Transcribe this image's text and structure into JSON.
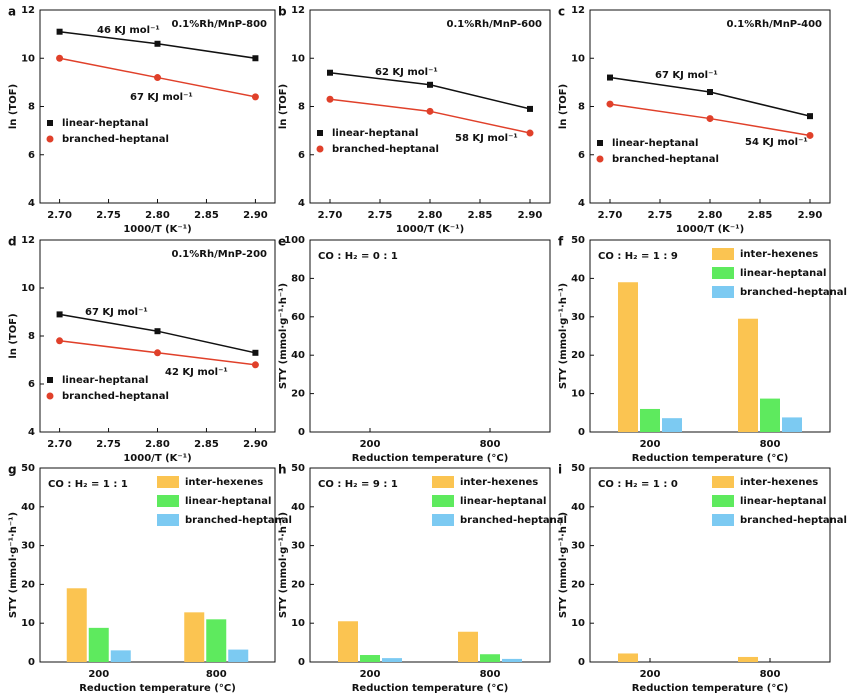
{
  "chart_data": [
    {
      "type": "line",
      "panel_label": "a",
      "title": "0.1%Rh/MnP-800",
      "xlabel": "1000/T (K⁻¹)",
      "ylabel": "ln (TOF)",
      "x": [
        2.7,
        2.8,
        2.9
      ],
      "xlim": [
        2.68,
        2.92
      ],
      "xticks": [
        {
          "value": 2.7,
          "label": "2.70"
        },
        {
          "value": 2.75,
          "label": "2.75"
        },
        {
          "value": 2.8,
          "label": "2.80"
        },
        {
          "value": 2.85,
          "label": "2.85"
        },
        {
          "value": 2.9,
          "label": "2.90"
        }
      ],
      "ylim": [
        4,
        12
      ],
      "yticks": [
        4,
        6,
        8,
        10,
        12
      ],
      "series": [
        {
          "name": "linear-heptanal",
          "color": "#111111",
          "marker": "square",
          "values": [
            11.1,
            10.6,
            10.0
          ]
        },
        {
          "name": "branched-heptanal",
          "color": "#e0402a",
          "marker": "circle",
          "values": [
            10.0,
            9.2,
            8.4
          ]
        }
      ],
      "annotations": [
        "46 KJ mol⁻¹",
        "67 KJ mol⁻¹"
      ]
    },
    {
      "type": "line",
      "panel_label": "b",
      "title": "0.1%Rh/MnP-600",
      "xlabel": "1000/T (K⁻¹)",
      "ylabel": "ln (TOF)",
      "x": [
        2.7,
        2.8,
        2.9
      ],
      "xlim": [
        2.68,
        2.92
      ],
      "xticks": [
        {
          "value": 2.7,
          "label": "2.70"
        },
        {
          "value": 2.75,
          "label": "2.75"
        },
        {
          "value": 2.8,
          "label": "2.80"
        },
        {
          "value": 2.85,
          "label": "2.85"
        },
        {
          "value": 2.9,
          "label": "2.90"
        }
      ],
      "ylim": [
        4,
        12
      ],
      "yticks": [
        4,
        6,
        8,
        10,
        12
      ],
      "series": [
        {
          "name": "linear-heptanal",
          "color": "#111111",
          "marker": "square",
          "values": [
            9.4,
            8.9,
            7.9
          ]
        },
        {
          "name": "branched-heptanal",
          "color": "#e0402a",
          "marker": "circle",
          "values": [
            8.3,
            7.8,
            6.9
          ]
        }
      ],
      "annotations": [
        "62 KJ mol⁻¹",
        "58  KJ mol⁻¹"
      ]
    },
    {
      "type": "line",
      "panel_label": "c",
      "title": "0.1%Rh/MnP-400",
      "xlabel": "1000/T (K⁻¹)",
      "ylabel": "ln (TOF)",
      "x": [
        2.7,
        2.8,
        2.9
      ],
      "xlim": [
        2.68,
        2.92
      ],
      "xticks": [
        {
          "value": 2.7,
          "label": "2.70"
        },
        {
          "value": 2.75,
          "label": "2.75"
        },
        {
          "value": 2.8,
          "label": "2.80"
        },
        {
          "value": 2.85,
          "label": "2.85"
        },
        {
          "value": 2.9,
          "label": "2.90"
        }
      ],
      "ylim": [
        4,
        12
      ],
      "yticks": [
        4,
        6,
        8,
        10,
        12
      ],
      "series": [
        {
          "name": "linear-heptanal",
          "color": "#111111",
          "marker": "square",
          "values": [
            9.2,
            8.6,
            7.6
          ]
        },
        {
          "name": "branched-heptanal",
          "color": "#e0402a",
          "marker": "circle",
          "values": [
            8.1,
            7.5,
            6.8
          ]
        }
      ],
      "annotations": [
        "67 KJ mol⁻¹",
        "54 KJ mol⁻¹"
      ]
    },
    {
      "type": "line",
      "panel_label": "d",
      "title": "0.1%Rh/MnP-200",
      "xlabel": "1000/T (K⁻¹)",
      "ylabel": "ln (TOF)",
      "x": [
        2.7,
        2.8,
        2.9
      ],
      "xlim": [
        2.68,
        2.92
      ],
      "xticks": [
        {
          "value": 2.7,
          "label": "2.70"
        },
        {
          "value": 2.75,
          "label": "2.75"
        },
        {
          "value": 2.8,
          "label": "2.80"
        },
        {
          "value": 2.85,
          "label": "2.85"
        },
        {
          "value": 2.9,
          "label": "2.90"
        }
      ],
      "ylim": [
        4,
        12
      ],
      "yticks": [
        4,
        6,
        8,
        10,
        12
      ],
      "series": [
        {
          "name": "linear-heptanal",
          "color": "#111111",
          "marker": "square",
          "values": [
            8.9,
            8.2,
            7.3
          ]
        },
        {
          "name": "branched-heptanal",
          "color": "#e0402a",
          "marker": "circle",
          "values": [
            7.8,
            7.3,
            6.8
          ]
        }
      ],
      "annotations": [
        "67 KJ mol⁻¹",
        "42 KJ mol⁻¹"
      ]
    },
    {
      "type": "bar",
      "panel_label": "e",
      "title": "CO : H₂ = 0 : 1",
      "xlabel": "Reduction temperature (°C)",
      "ylabel": "STY (mmol·g⁻¹·h⁻¹)",
      "categories": [
        "200",
        "800"
      ],
      "ylim": [
        0,
        100
      ],
      "yticks": [
        0,
        20,
        40,
        60,
        80,
        100
      ],
      "values": [
        0,
        0
      ],
      "color": "#a05ad0"
    },
    {
      "type": "bar",
      "panel_label": "f",
      "title": "CO : H₂ = 1 : 9",
      "xlabel": "Reduction temperature (°C)",
      "ylabel": "STY (mmol·g⁻¹·h⁻¹)",
      "categories": [
        "200",
        "800"
      ],
      "ylim": [
        0,
        50
      ],
      "yticks": [
        0,
        10,
        20,
        30,
        40,
        50
      ],
      "series": [
        {
          "name": "inter-hexenes",
          "color": "#fbc451",
          "values": [
            39,
            29.5
          ]
        },
        {
          "name": "linear-heptanal",
          "color": "#5eea5e",
          "values": [
            6,
            8.7
          ]
        },
        {
          "name": "branched-heptanal",
          "color": "#7ccaf2",
          "values": [
            3.6,
            3.8
          ]
        }
      ]
    },
    {
      "type": "bar",
      "panel_label": "g",
      "title": "CO : H₂ = 1 : 1",
      "xlabel": "Reduction temperature (°C)",
      "ylabel": "STY (mmol·g⁻¹·h⁻¹)",
      "categories": [
        "200",
        "800"
      ],
      "ylim": [
        0,
        50
      ],
      "yticks": [
        0,
        10,
        20,
        30,
        40,
        50
      ],
      "series": [
        {
          "name": "inter-hexenes",
          "color": "#fbc451",
          "values": [
            19,
            12.8
          ]
        },
        {
          "name": "linear-heptanal",
          "color": "#5eea5e",
          "values": [
            8.8,
            11
          ]
        },
        {
          "name": "branched-heptanal",
          "color": "#7ccaf2",
          "values": [
            3,
            3.2
          ]
        }
      ]
    },
    {
      "type": "bar",
      "panel_label": "h",
      "title": "CO : H₂ = 9 : 1",
      "xlabel": "Reduction temperature (°C)",
      "ylabel": "STY (mmol·g⁻¹·h⁻¹)",
      "categories": [
        "200",
        "800"
      ],
      "ylim": [
        0,
        50
      ],
      "yticks": [
        0,
        10,
        20,
        30,
        40,
        50
      ],
      "series": [
        {
          "name": "inter-hexenes",
          "color": "#fbc451",
          "values": [
            10.5,
            7.8
          ]
        },
        {
          "name": "linear-heptanal",
          "color": "#5eea5e",
          "values": [
            1.8,
            2
          ]
        },
        {
          "name": "branched-heptanal",
          "color": "#7ccaf2",
          "values": [
            1,
            0.8
          ]
        }
      ]
    },
    {
      "type": "bar",
      "panel_label": "i",
      "title": "CO : H₂ = 1 : 0",
      "xlabel": "Reduction temperature (°C)",
      "ylabel": "STY (mmol·g⁻¹·h⁻¹)",
      "categories": [
        "200",
        "800"
      ],
      "ylim": [
        0,
        50
      ],
      "yticks": [
        0,
        10,
        20,
        30,
        40,
        50
      ],
      "series": [
        {
          "name": "inter-hexenes",
          "color": "#fbc451",
          "values": [
            2.2,
            1.3
          ]
        },
        {
          "name": "linear-heptanal",
          "color": "#5eea5e",
          "values": [
            0,
            0
          ]
        },
        {
          "name": "branched-heptanal",
          "color": "#7ccaf2",
          "values": [
            0,
            0
          ]
        }
      ]
    }
  ]
}
